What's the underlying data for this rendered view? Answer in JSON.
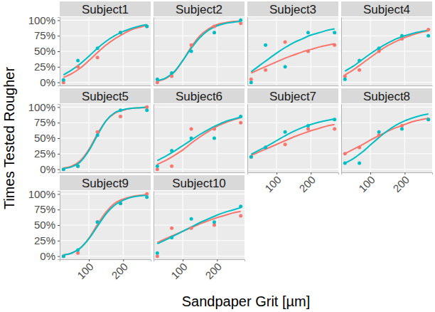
{
  "chart_data": {
    "type": "scatter",
    "x_label": "Sandpaper Grit [µm]",
    "y_label": "Times Tested Rougher",
    "x": [
      26,
      68,
      125,
      192,
      269
    ],
    "xlim": [
      15,
      280
    ],
    "ylim": [
      -5,
      105
    ],
    "xticks": [
      100,
      200
    ],
    "yticks": [
      {
        "value": 0,
        "label": "0%"
      },
      {
        "value": 25,
        "label": "25%"
      },
      {
        "value": 50,
        "label": "50%"
      },
      {
        "value": 75,
        "label": "75%"
      },
      {
        "value": 100,
        "label": "100%"
      }
    ],
    "grid": true,
    "panels": [
      {
        "title": "Subject1",
        "series": [
          {
            "type": "scatter",
            "color": "#F8766D",
            "values": [
              0,
              25,
              40,
              80,
              90
            ]
          },
          {
            "type": "scatter",
            "color": "#00BFC4",
            "values": [
              4,
              35,
              55,
              80,
              90
            ]
          },
          {
            "type": "line",
            "color": "#F8766D",
            "x": [
              26,
              50,
              75,
              100,
              125,
              150,
              175,
              200,
              225,
              250,
              269
            ],
            "values": [
              8,
              14,
              23,
              35,
              48,
              60,
              70,
              78,
              85,
              89,
              92
            ]
          },
          {
            "type": "line",
            "color": "#00BFC4",
            "x": [
              26,
              50,
              75,
              100,
              125,
              150,
              175,
              200,
              225,
              250,
              269
            ],
            "values": [
              12,
              20,
              30,
              42,
              55,
              66,
              75,
              82,
              87,
              91,
              93
            ]
          }
        ]
      },
      {
        "title": "Subject2",
        "series": [
          {
            "type": "scatter",
            "color": "#F8766D",
            "values": [
              0,
              10,
              60,
              90,
              95
            ]
          },
          {
            "type": "scatter",
            "color": "#00BFC4",
            "values": [
              5,
              15,
              50,
              80,
              100
            ]
          },
          {
            "type": "line",
            "color": "#F8766D",
            "x": [
              26,
              50,
              75,
              100,
              125,
              150,
              175,
              200,
              225,
              250,
              269
            ],
            "values": [
              2,
              6,
              16,
              35,
              57,
              75,
              86,
              93,
              96,
              98,
              99
            ]
          },
          {
            "type": "line",
            "color": "#00BFC4",
            "x": [
              26,
              50,
              75,
              100,
              125,
              150,
              175,
              200,
              225,
              250,
              269
            ],
            "values": [
              3,
              7,
              17,
              35,
              55,
              72,
              84,
              91,
              95,
              97,
              98
            ]
          }
        ]
      },
      {
        "title": "Subject3",
        "series": [
          {
            "type": "scatter",
            "color": "#F8766D",
            "values": [
              5,
              20,
              65,
              50,
              60
            ]
          },
          {
            "type": "scatter",
            "color": "#00BFC4",
            "values": [
              0,
              60,
              25,
              80,
              80
            ]
          },
          {
            "type": "line",
            "color": "#F8766D",
            "x": [
              26,
              50,
              75,
              100,
              125,
              150,
              175,
              200,
              225,
              250,
              269
            ],
            "values": [
              15,
              21,
              27,
              33,
              39,
              44,
              49,
              53,
              57,
              60,
              62
            ]
          },
          {
            "type": "line",
            "color": "#00BFC4",
            "x": [
              26,
              50,
              75,
              100,
              125,
              150,
              175,
              200,
              225,
              250,
              269
            ],
            "values": [
              17,
              27,
              37,
              47,
              56,
              64,
              70,
              76,
              80,
              84,
              86
            ]
          }
        ]
      },
      {
        "title": "Subject4",
        "series": [
          {
            "type": "scatter",
            "color": "#F8766D",
            "values": [
              10,
              20,
              50,
              70,
              85
            ]
          },
          {
            "type": "scatter",
            "color": "#00BFC4",
            "values": [
              5,
              35,
              55,
              75,
              75
            ]
          },
          {
            "type": "line",
            "color": "#F8766D",
            "x": [
              26,
              50,
              75,
              100,
              125,
              150,
              175,
              200,
              225,
              250,
              269
            ],
            "values": [
              12,
              20,
              30,
              40,
              50,
              59,
              66,
              72,
              77,
              81,
              83
            ]
          },
          {
            "type": "line",
            "color": "#00BFC4",
            "x": [
              26,
              50,
              75,
              100,
              125,
              150,
              175,
              200,
              225,
              250,
              269
            ],
            "values": [
              18,
              26,
              36,
              46,
              55,
              63,
              70,
              75,
              79,
              82,
              84
            ]
          }
        ]
      },
      {
        "title": "Subject5",
        "series": [
          {
            "type": "scatter",
            "color": "#F8766D",
            "values": [
              0,
              5,
              60,
              85,
              100
            ]
          },
          {
            "type": "scatter",
            "color": "#00BFC4",
            "values": [
              0,
              5,
              55,
              95,
              95
            ]
          },
          {
            "type": "line",
            "color": "#F8766D",
            "x": [
              26,
              50,
              75,
              100,
              125,
              150,
              175,
              200,
              225,
              250,
              269
            ],
            "values": [
              2,
              5,
              14,
              32,
              57,
              78,
              90,
              95,
              98,
              99,
              99
            ]
          },
          {
            "type": "line",
            "color": "#00BFC4",
            "x": [
              26,
              50,
              75,
              100,
              125,
              150,
              175,
              200,
              225,
              250,
              269
            ],
            "values": [
              1,
              4,
              12,
              30,
              55,
              78,
              91,
              96,
              98,
              99,
              100
            ]
          }
        ]
      },
      {
        "title": "Subject6",
        "series": [
          {
            "type": "scatter",
            "color": "#F8766D",
            "values": [
              0,
              5,
              65,
              65,
              75
            ]
          },
          {
            "type": "scatter",
            "color": "#00BFC4",
            "values": [
              5,
              30,
              50,
              50,
              85
            ]
          },
          {
            "type": "line",
            "color": "#F8766D",
            "x": [
              26,
              50,
              75,
              100,
              125,
              150,
              175,
              200,
              225,
              250,
              269
            ],
            "values": [
              8,
              14,
              22,
              31,
              42,
              52,
              61,
              69,
              75,
              80,
              83
            ]
          },
          {
            "type": "line",
            "color": "#00BFC4",
            "x": [
              26,
              50,
              75,
              100,
              125,
              150,
              175,
              200,
              225,
              250,
              269
            ],
            "values": [
              14,
              21,
              29,
              38,
              47,
              56,
              64,
              71,
              77,
              81,
              84
            ]
          }
        ]
      },
      {
        "title": "Subject7",
        "series": [
          {
            "type": "scatter",
            "color": "#F8766D",
            "values": [
              20,
              35,
              40,
              65,
              65
            ]
          },
          {
            "type": "scatter",
            "color": "#00BFC4",
            "values": [
              20,
              35,
              60,
              70,
              80
            ]
          },
          {
            "type": "line",
            "color": "#F8766D",
            "x": [
              26,
              50,
              75,
              100,
              125,
              150,
              175,
              200,
              225,
              250,
              269
            ],
            "values": [
              22,
              28,
              34,
              40,
              46,
              52,
              57,
              62,
              66,
              70,
              72
            ]
          },
          {
            "type": "line",
            "color": "#00BFC4",
            "x": [
              26,
              50,
              75,
              100,
              125,
              150,
              175,
              200,
              225,
              250,
              269
            ],
            "values": [
              24,
              31,
              38,
              46,
              54,
              61,
              67,
              72,
              76,
              79,
              81
            ]
          }
        ]
      },
      {
        "title": "Subject8",
        "series": [
          {
            "type": "scatter",
            "color": "#F8766D",
            "values": [
              25,
              35,
              55,
              70,
              80
            ]
          },
          {
            "type": "scatter",
            "color": "#00BFC4",
            "values": [
              10,
              10,
              60,
              65,
              80
            ]
          },
          {
            "type": "line",
            "color": "#F8766D",
            "x": [
              26,
              50,
              75,
              100,
              125,
              150,
              175,
              200,
              225,
              250,
              269
            ],
            "values": [
              25,
              32,
              39,
              47,
              54,
              61,
              67,
              72,
              77,
              80,
              82
            ]
          },
          {
            "type": "line",
            "color": "#00BFC4",
            "x": [
              26,
              50,
              75,
              100,
              125,
              150,
              175,
              200,
              225,
              250,
              269
            ],
            "values": [
              10,
              17,
              27,
              39,
              51,
              62,
              71,
              78,
              83,
              87,
              89
            ]
          }
        ]
      },
      {
        "title": "Subject9",
        "series": [
          {
            "type": "scatter",
            "color": "#F8766D",
            "values": [
              0,
              5,
              55,
              85,
              100
            ]
          },
          {
            "type": "scatter",
            "color": "#00BFC4",
            "values": [
              0,
              10,
              55,
              85,
              95
            ]
          },
          {
            "type": "line",
            "color": "#F8766D",
            "x": [
              26,
              50,
              75,
              100,
              125,
              150,
              175,
              200,
              225,
              250,
              269
            ],
            "values": [
              2,
              5,
              13,
              29,
              51,
              71,
              85,
              92,
              96,
              98,
              99
            ]
          },
          {
            "type": "line",
            "color": "#00BFC4",
            "x": [
              26,
              50,
              75,
              100,
              125,
              150,
              175,
              200,
              225,
              250,
              269
            ],
            "values": [
              2,
              5,
              13,
              28,
              48,
              68,
              82,
              90,
              95,
              97,
              98
            ]
          }
        ]
      },
      {
        "title": "Subject10",
        "series": [
          {
            "type": "scatter",
            "color": "#F8766D",
            "values": [
              0,
              45,
              45,
              50,
              65
            ]
          },
          {
            "type": "scatter",
            "color": "#00BFC4",
            "values": [
              5,
              30,
              60,
              55,
              80
            ]
          },
          {
            "type": "line",
            "color": "#F8766D",
            "x": [
              26,
              50,
              75,
              100,
              125,
              150,
              175,
              200,
              225,
              250,
              269
            ],
            "values": [
              22,
              28,
              34,
              40,
              46,
              52,
              57,
              62,
              66,
              70,
              72
            ]
          },
          {
            "type": "line",
            "color": "#00BFC4",
            "x": [
              26,
              50,
              75,
              100,
              125,
              150,
              175,
              200,
              225,
              250,
              269
            ],
            "values": [
              20,
              26,
              33,
              40,
              47,
              54,
              60,
              66,
              71,
              75,
              78
            ]
          }
        ]
      }
    ]
  }
}
